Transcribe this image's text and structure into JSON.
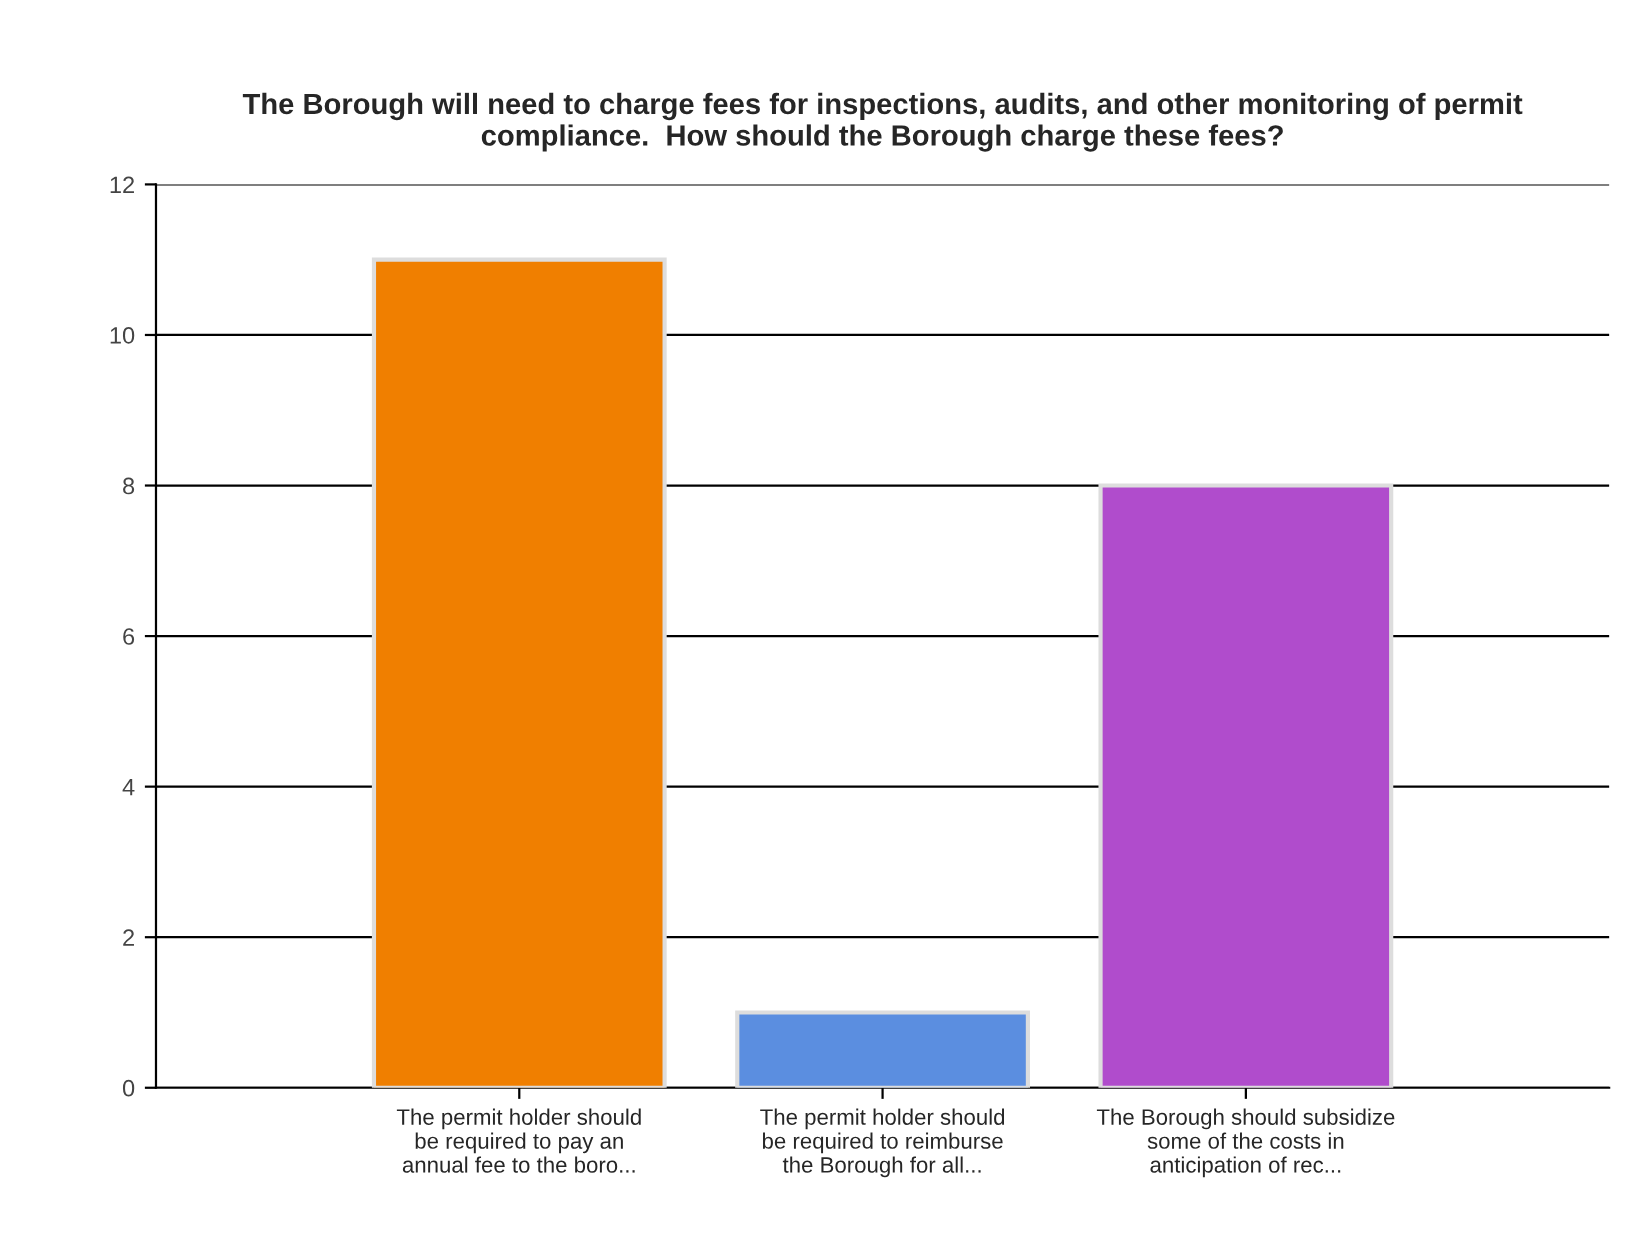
{
  "chart_data": {
    "type": "bar",
    "title": "The Borough will need to charge fees for inspections, audits, and other monitoring of permit\ncompliance.  How should the Borough charge these fees?",
    "categories": [
      "The permit holder should\nbe required to pay an\nannual fee to the boro...",
      "The permit holder should\nbe required to reimburse\nthe Borough for all...",
      "The Borough should subsidize\nsome of the costs in\nanticipation of rec..."
    ],
    "values": [
      11,
      1,
      8
    ],
    "colors": [
      "#f07f00",
      "#5b8ee0",
      "#b04ccc"
    ],
    "ylim": [
      0,
      12
    ],
    "yticks": [
      0,
      2,
      4,
      6,
      8,
      10,
      12
    ],
    "grid": "y"
  }
}
